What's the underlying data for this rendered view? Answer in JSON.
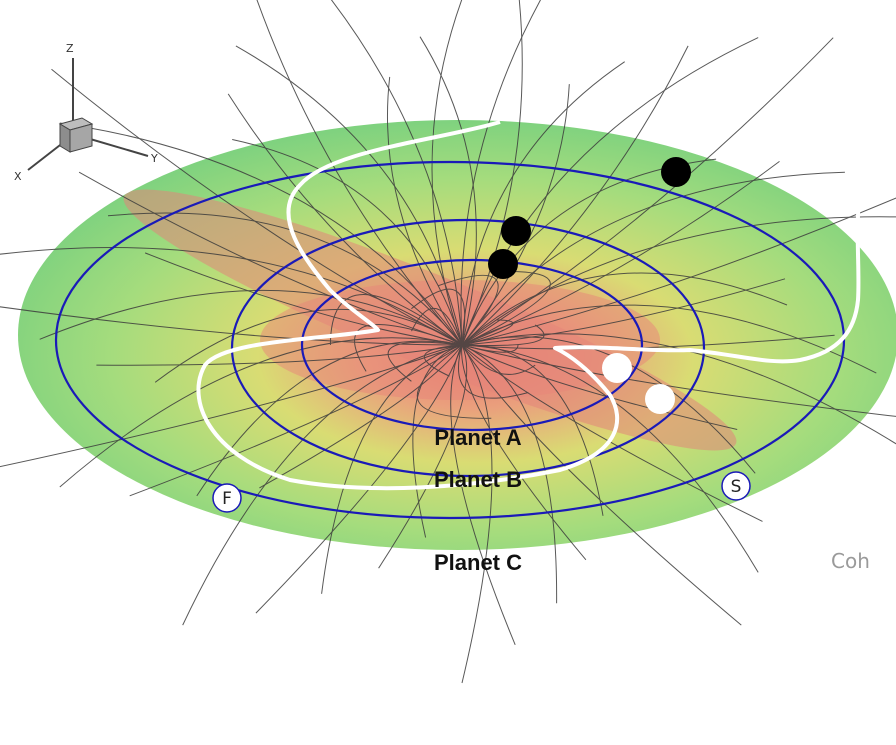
{
  "axes": {
    "z": "Z",
    "y": "Y",
    "x": "X"
  },
  "orbit_labels": [
    "Planet A",
    "Planet B",
    "Planet C"
  ],
  "markers": {
    "f": "F",
    "s": "S"
  },
  "caption_fragment": "Coh",
  "colors": {
    "disk_outer": "#86d483",
    "disk_mid": "#d8e070",
    "disk_hot": "#e8897a",
    "orbit": "#1a1ab8",
    "current_sheet": "#ffffff",
    "field_line": "#3a3a3a",
    "planet_dark": "#000000",
    "planet_light": "#ffffff"
  }
}
